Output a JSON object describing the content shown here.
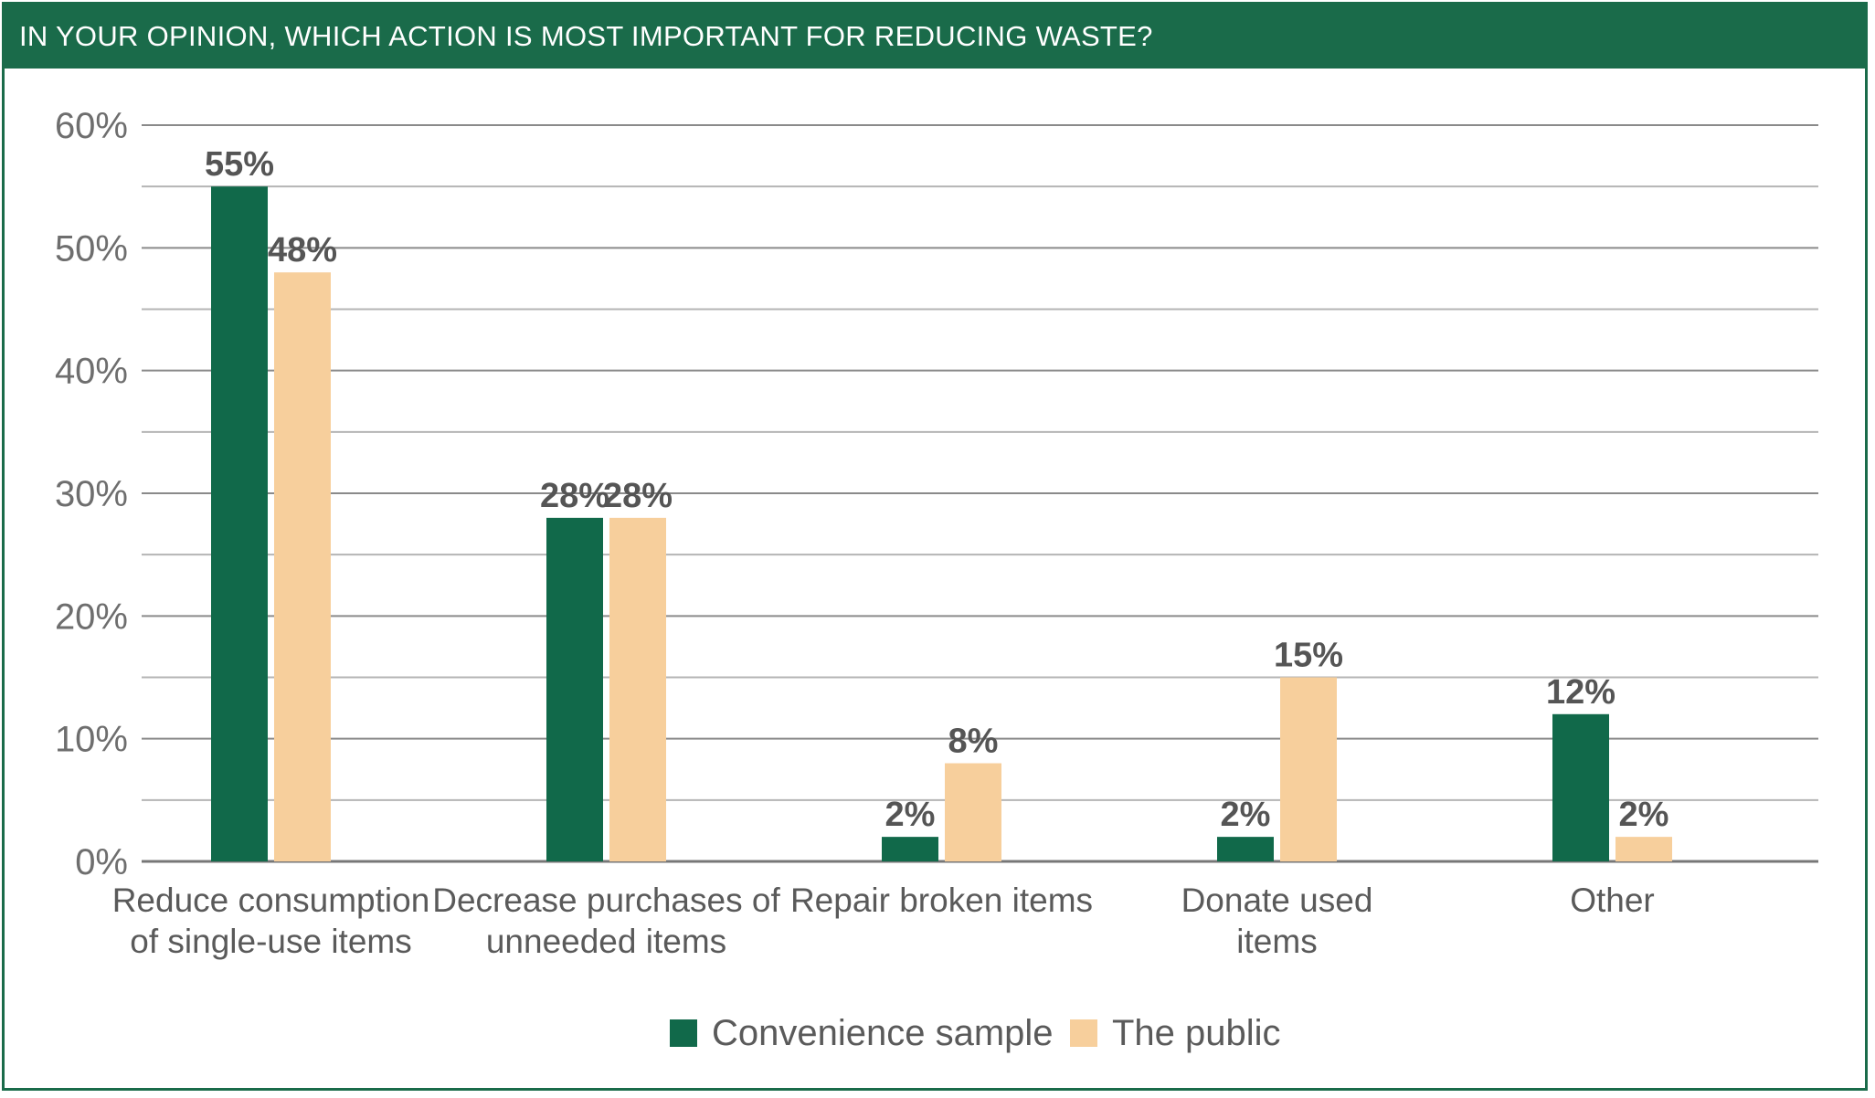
{
  "chart_data": {
    "type": "bar",
    "title": "IN YOUR OPINION, WHICH ACTION IS MOST IMPORTANT FOR REDUCING WASTE?",
    "categories": [
      [
        "Reduce consumption",
        "of single-use items"
      ],
      [
        "Decrease purchases of",
        "unneeded items"
      ],
      [
        "Repair broken items"
      ],
      [
        "Donate used",
        "items"
      ],
      [
        "Other"
      ]
    ],
    "series": [
      {
        "name": "Convenience sample",
        "color": "#11694a",
        "values": [
          55,
          28,
          2,
          2,
          12
        ],
        "labels": [
          "55%",
          "28%",
          "2%",
          "2%",
          "12%"
        ]
      },
      {
        "name": "The public",
        "color": "#f7cf9c",
        "values": [
          48,
          28,
          8,
          15,
          2
        ],
        "labels": [
          "48%",
          "28%",
          "8%",
          "15%",
          "2%"
        ]
      }
    ],
    "ylim": [
      0,
      60
    ],
    "yticks": [
      0,
      10,
      20,
      30,
      40,
      50,
      60
    ],
    "ytick_labels": [
      "0%",
      "10%",
      "20%",
      "30%",
      "40%",
      "50%",
      "60%"
    ],
    "grid": true,
    "legend": "bottom-center"
  }
}
